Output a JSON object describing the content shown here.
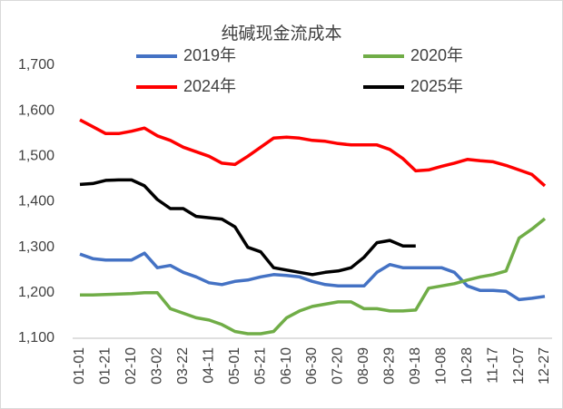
{
  "chart_data": {
    "type": "line",
    "title": "纯碱现金流成本",
    "categories": [
      "01-01",
      null,
      "01-21",
      null,
      "02-10",
      null,
      "03-02",
      null,
      "03-22",
      null,
      "04-11",
      null,
      "05-01",
      null,
      "05-21",
      null,
      "06-10",
      null,
      "06-30",
      null,
      "07-20",
      null,
      "08-09",
      null,
      "08-29",
      null,
      "09-18",
      null,
      "10-08",
      null,
      "10-28",
      null,
      "11-17",
      null,
      "12-07",
      null,
      "12-27"
    ],
    "series": [
      {
        "name": "2019年",
        "color": "#4472c4",
        "values": [
          1285,
          1275,
          1272,
          1272,
          1272,
          1287,
          1255,
          1260,
          1245,
          1235,
          1222,
          1218,
          1225,
          1228,
          1235,
          1240,
          1238,
          1235,
          1225,
          1218,
          1215,
          1215,
          1215,
          1245,
          1262,
          1255,
          1255,
          1255,
          1255,
          1245,
          1215,
          1205,
          1205,
          1203,
          1185,
          1188,
          1192
        ]
      },
      {
        "name": "2020年",
        "color": "#70ad47",
        "values": [
          1195,
          1195,
          1196,
          1197,
          1198,
          1200,
          1200,
          1165,
          1155,
          1145,
          1140,
          1130,
          1115,
          1110,
          1110,
          1115,
          1145,
          1160,
          1170,
          1175,
          1180,
          1180,
          1165,
          1165,
          1160,
          1160,
          1162,
          1210,
          1215,
          1220,
          1228,
          1235,
          1240,
          1248,
          1320,
          1340,
          1363
        ]
      },
      {
        "name": "2024年",
        "color": "#ff0000",
        "values": [
          1580,
          1565,
          1550,
          1550,
          1555,
          1562,
          1545,
          1535,
          1520,
          1510,
          1500,
          1485,
          1482,
          1500,
          1520,
          1540,
          1542,
          1540,
          1535,
          1533,
          1528,
          1525,
          1525,
          1525,
          1515,
          1495,
          1468,
          1470,
          1478,
          1485,
          1493,
          1490,
          1488,
          1480,
          1470,
          1460,
          1435
        ]
      },
      {
        "name": "2025年",
        "color": "#000000",
        "values": [
          1438,
          1440,
          1447,
          1448,
          1448,
          1435,
          1405,
          1385,
          1385,
          1368,
          1365,
          1362,
          1345,
          1300,
          1290,
          1255,
          1250,
          1245,
          1240,
          1245,
          1248,
          1255,
          1278,
          1310,
          1315,
          1303,
          1303,
          null,
          null,
          null,
          null,
          null,
          null,
          null,
          null,
          null,
          null
        ]
      }
    ],
    "ylim": [
      1100,
      1700
    ],
    "yticks": [
      {
        "value": 1100,
        "label": "1,100"
      },
      {
        "value": 1200,
        "label": "1,200"
      },
      {
        "value": 1300,
        "label": "1,300"
      },
      {
        "value": 1400,
        "label": "1,400"
      },
      {
        "value": 1500,
        "label": "1,500"
      },
      {
        "value": 1600,
        "label": "1,600"
      },
      {
        "value": 1700,
        "label": "1,700"
      }
    ],
    "grid": false
  }
}
